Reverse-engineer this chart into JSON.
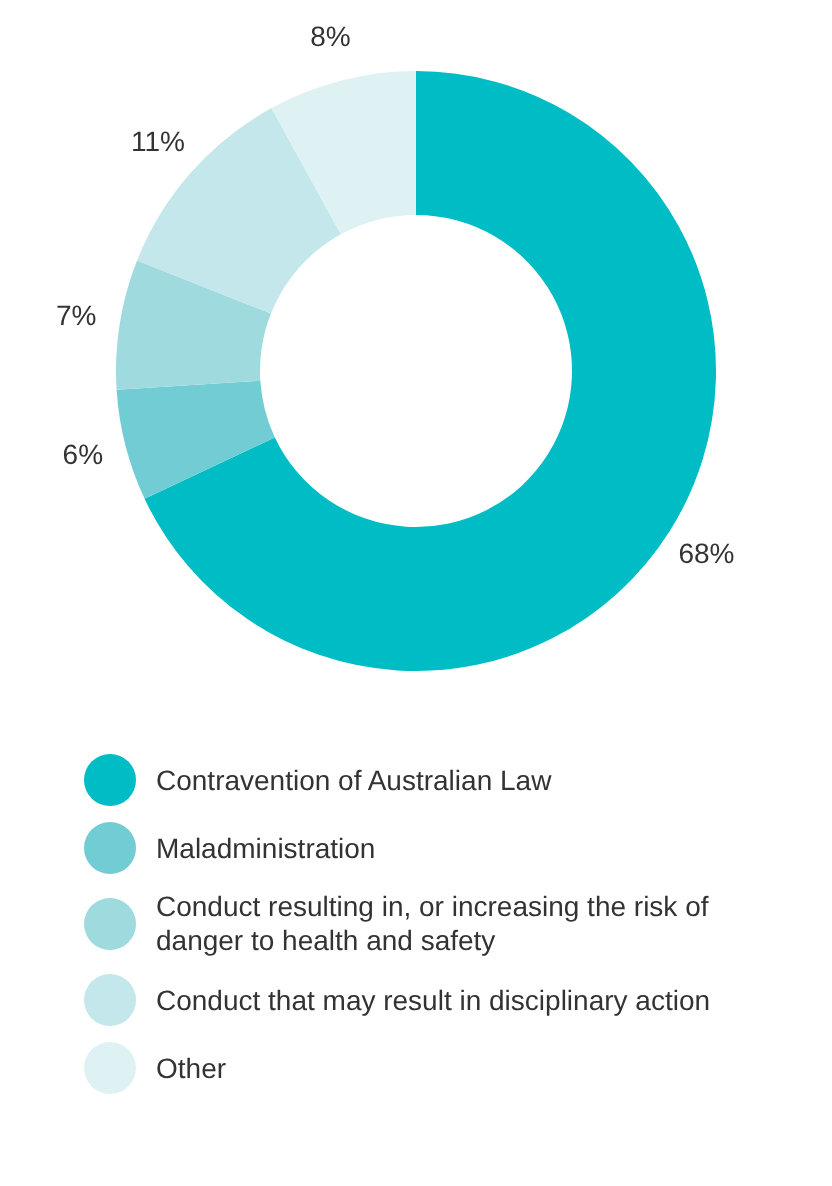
{
  "chart_data": {
    "type": "donut",
    "categories": [
      "Contravention of Australian Law",
      "Maladministration",
      "Conduct resulting in, or increasing the risk of danger to health and safety",
      "Conduct that may result in disciplinary action",
      "Other"
    ],
    "values": [
      68,
      6,
      7,
      11,
      8
    ],
    "colors": [
      "#00bcc4",
      "#72ccd3",
      "#9fdade",
      "#c3e7ea",
      "#dff2f3"
    ],
    "value_labels": [
      "68%",
      "6%",
      "7%",
      "11%",
      "8%"
    ],
    "legend": "bottom"
  }
}
